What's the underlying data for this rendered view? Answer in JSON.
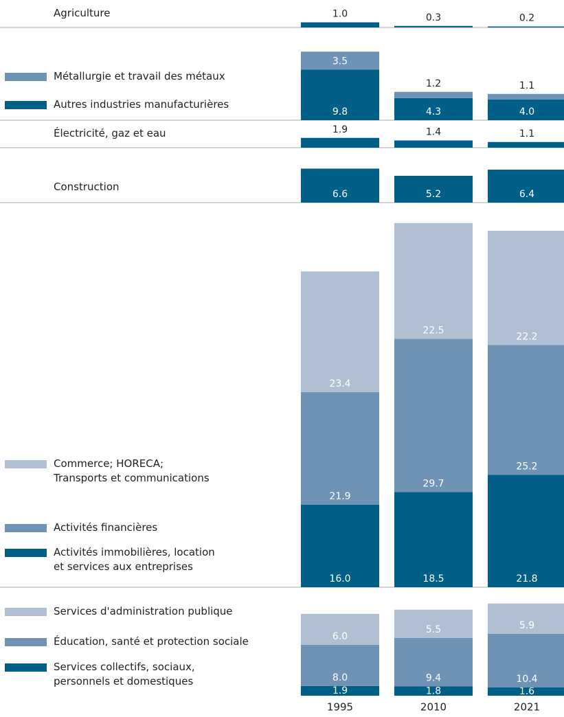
{
  "chart_data": {
    "type": "stacked-bar",
    "categories": [
      "1995",
      "2010",
      "2021"
    ],
    "panels": [
      {
        "series": [
          {
            "name": "Agriculture",
            "color": "#005f87",
            "values": [
              1.0,
              0.3,
              0.2
            ],
            "value_labels": [
              "1.0",
              "0.3",
              "0.2"
            ]
          }
        ]
      },
      {
        "series": [
          {
            "name": "Autres industries manufacturières",
            "color": "#005f87",
            "values": [
              9.8,
              4.3,
              4.0
            ],
            "value_labels": [
              "9.8",
              "4.3",
              "4.0"
            ]
          },
          {
            "name": "Métallurgie et travail des métaux",
            "color": "#6f93b5",
            "values": [
              3.5,
              1.2,
              1.1
            ],
            "value_labels": [
              "3.5",
              "1.2",
              "1.1"
            ]
          }
        ]
      },
      {
        "series": [
          {
            "name": "Électricité, gaz et eau",
            "color": "#005f87",
            "values": [
              1.9,
              1.4,
              1.1
            ],
            "value_labels": [
              "1.9",
              "1.4",
              "1.1"
            ]
          }
        ]
      },
      {
        "series": [
          {
            "name": "Construction",
            "color": "#005f87",
            "values": [
              6.6,
              5.2,
              6.4
            ],
            "value_labels": [
              "6.6",
              "5.2",
              "6.4"
            ]
          }
        ]
      },
      {
        "series": [
          {
            "name": "Activités immobilières, location\net services aux entreprises",
            "color": "#005f87",
            "values": [
              16.0,
              18.5,
              21.8
            ],
            "value_labels": [
              "16.0",
              "18.5",
              "21.8"
            ]
          },
          {
            "name": "Activités financières",
            "color": "#6f93b5",
            "values": [
              21.9,
              29.7,
              25.2
            ],
            "value_labels": [
              "21.9",
              "29.7",
              "25.2"
            ]
          },
          {
            "name": "Commerce; HORECA;\nTransports et communications",
            "color": "#b0bfd1",
            "values": [
              23.4,
              22.5,
              22.2
            ],
            "value_labels": [
              "23.4",
              "22.5",
              "22.2"
            ]
          }
        ]
      },
      {
        "series": [
          {
            "name": "Services collectifs, sociaux,\npersonnels et domestiques",
            "color": "#005f87",
            "values": [
              1.9,
              1.8,
              1.6
            ],
            "value_labels": [
              "1.9",
              "1.8",
              "1.6"
            ]
          },
          {
            "name": "Éducation, santé et protection sociale",
            "color": "#6f93b5",
            "values": [
              8.0,
              9.4,
              10.4
            ],
            "value_labels": [
              "8.0",
              "9.4",
              "10.4"
            ]
          },
          {
            "name": "Services d'administration publique",
            "color": "#b0bfd1",
            "values": [
              6.0,
              5.5,
              5.9
            ],
            "value_labels": [
              "6.0",
              "5.5",
              "5.9"
            ]
          }
        ]
      }
    ]
  }
}
